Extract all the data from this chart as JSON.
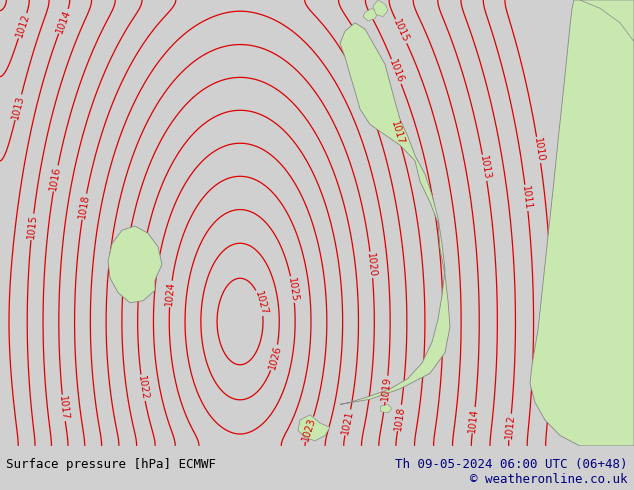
{
  "title_left": "Surface pressure [hPa] ECMWF",
  "title_right": "Th 09-05-2024 06:00 UTC (06+48)",
  "copyright": "© weatheronline.co.uk",
  "bg_color": "#d0d0d0",
  "land_color": "#c8e8b0",
  "sea_color": "#d0d0d0",
  "isobar_color": "#dd0000",
  "coast_color": "#888888",
  "text_color": "#000080",
  "bottom_bar_color": "#e0e0e0",
  "figsize": [
    6.34,
    4.9
  ],
  "dpi": 100
}
